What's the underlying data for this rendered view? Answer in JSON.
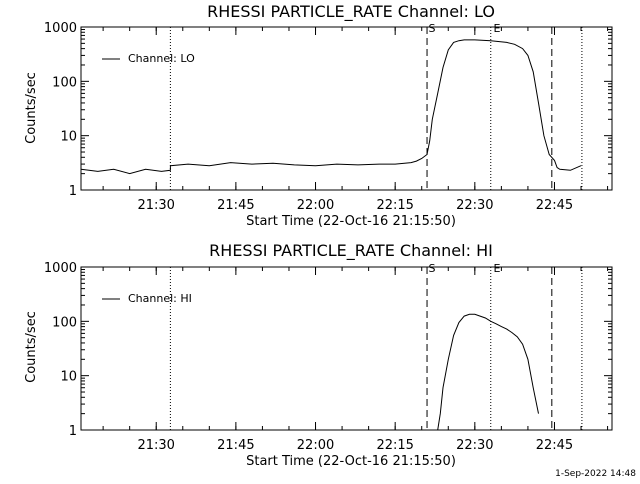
{
  "footer": "1-Sep-2022 14:48",
  "chart_data": [
    {
      "type": "line",
      "title": "RHESSI PARTICLE_RATE Channel: LO",
      "xlabel": "Start Time (22-Oct-16 21:15:50)",
      "ylabel": "Counts/sec",
      "yscale": "log",
      "ylim": [
        1,
        1000
      ],
      "xlim": [
        "21:15:50",
        "22:55:50"
      ],
      "x_ticks": [
        "21:30",
        "21:45",
        "22:00",
        "22:15",
        "22:30",
        "22:45"
      ],
      "y_ticks": [
        "1",
        "10",
        "100",
        "1000"
      ],
      "legend": "top-left",
      "markers": [
        {
          "label": "S",
          "x": "22:21:00"
        },
        {
          "label": "E",
          "x": "22:33:00"
        }
      ],
      "dashed_lines": [
        "22:21:00",
        "22:44:30"
      ],
      "dotted_lines": [
        "21:32:40",
        "22:33:00",
        "22:50:10"
      ],
      "series": [
        {
          "name": "Channel: LO",
          "x": [
            "21:15:50",
            "21:19:00",
            "21:22:00",
            "21:25:00",
            "21:28:00",
            "21:31:00",
            "21:32:40",
            "21:32:40",
            "21:36:00",
            "21:40:00",
            "21:44:00",
            "21:48:00",
            "21:52:00",
            "21:56:00",
            "22:00:00",
            "22:04:00",
            "22:08:00",
            "22:12:00",
            "22:15:00",
            "22:18:00",
            "22:19:00",
            "22:20:00",
            "22:21:00",
            "22:21:30",
            "22:22:00",
            "22:23:00",
            "22:24:00",
            "22:25:00",
            "22:26:00",
            "22:27:00",
            "22:28:00",
            "22:29:00",
            "22:30:00",
            "22:33:00",
            "22:36:00",
            "22:37:30",
            "22:39:00",
            "22:40:00",
            "22:41:00",
            "22:42:00",
            "22:43:00",
            "22:44:00",
            "22:45:00",
            "22:45:30",
            "22:46:00",
            "22:48:00",
            "22:50:00"
          ],
          "values": [
            2.4,
            2.2,
            2.4,
            2.0,
            2.4,
            2.2,
            2.3,
            2.8,
            3.0,
            2.8,
            3.2,
            3.0,
            3.1,
            2.9,
            2.8,
            3.0,
            2.9,
            3.0,
            3.0,
            3.2,
            3.4,
            3.8,
            4.5,
            8,
            20,
            60,
            180,
            380,
            520,
            560,
            580,
            580,
            580,
            560,
            520,
            480,
            400,
            300,
            150,
            40,
            10,
            4.5,
            3.5,
            2.6,
            2.4,
            2.3,
            2.8
          ]
        }
      ]
    },
    {
      "type": "line",
      "title": "RHESSI PARTICLE_RATE Channel: HI",
      "xlabel": "Start Time (22-Oct-16 21:15:50)",
      "ylabel": "Counts/sec",
      "yscale": "log",
      "ylim": [
        1,
        1000
      ],
      "xlim": [
        "21:15:50",
        "22:55:50"
      ],
      "x_ticks": [
        "21:30",
        "21:45",
        "22:00",
        "22:15",
        "22:30",
        "22:45"
      ],
      "y_ticks": [
        "1",
        "10",
        "100",
        "1000"
      ],
      "legend": "top-left",
      "markers": [
        {
          "label": "S",
          "x": "22:21:00"
        },
        {
          "label": "E",
          "x": "22:33:00"
        }
      ],
      "dashed_lines": [
        "22:21:00",
        "22:44:30"
      ],
      "dotted_lines": [
        "21:32:40",
        "22:33:00",
        "22:50:10"
      ],
      "series": [
        {
          "name": "Channel: HI",
          "x": [
            "22:23:00",
            "22:23:30",
            "22:24:00",
            "22:25:00",
            "22:26:00",
            "22:27:00",
            "22:28:00",
            "22:29:00",
            "22:30:00",
            "22:31:00",
            "22:32:00",
            "22:33:00",
            "22:34:00",
            "22:35:00",
            "22:36:00",
            "22:37:00",
            "22:38:00",
            "22:39:00",
            "22:40:00",
            "22:41:00",
            "22:42:00"
          ],
          "values": [
            1.0,
            2,
            6,
            20,
            55,
            95,
            125,
            135,
            135,
            125,
            115,
            100,
            90,
            80,
            72,
            62,
            52,
            38,
            20,
            6,
            2
          ]
        }
      ]
    }
  ]
}
